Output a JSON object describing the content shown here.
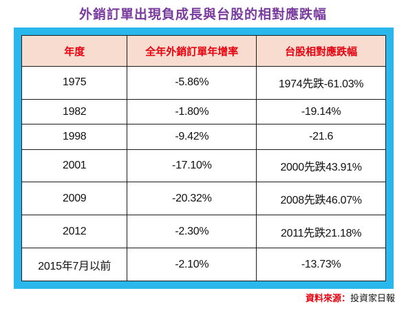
{
  "title": "外銷訂單出現負成長與台股的相對應跌幅",
  "table": {
    "headers": [
      "年度",
      "全年外銷訂單年增率",
      "台股相對應跌幅"
    ],
    "rows": [
      [
        "1975",
        "-5.86%",
        "1974先跌-61.03%"
      ],
      [
        "1982",
        "-1.80%",
        "-19.14%"
      ],
      [
        "1998",
        "-9.42%",
        "-21.6"
      ],
      [
        "2001",
        "-17.10%",
        "2000先跌43.91%"
      ],
      [
        "2009",
        "-20.32%",
        "2008先跌46.07%"
      ],
      [
        "2012",
        "-2.30%",
        "2011先跌21.18%"
      ],
      [
        "2015年7月以前",
        "-2.10%",
        "-13.73%"
      ]
    ]
  },
  "source": {
    "label": "資料來源：",
    "value": "投資家日報"
  },
  "colors": {
    "title": "#7a3b9e",
    "frame": "#2ab7ec",
    "header_bg": "#f7dccf",
    "header_text": "#e8000f",
    "source_label": "#e8000f"
  }
}
